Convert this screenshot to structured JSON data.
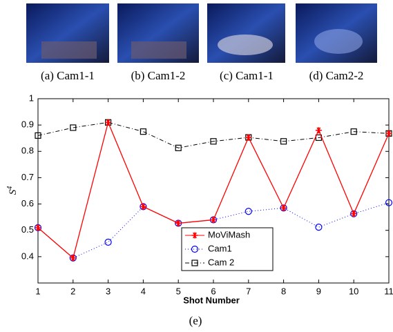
{
  "images": [
    {
      "caption": "(a) Cam1-1"
    },
    {
      "caption": "(b) Cam1-2"
    },
    {
      "caption": "(c) Cam1-1"
    },
    {
      "caption": "(d) Cam2-2"
    }
  ],
  "figure_label": "(e)",
  "chart_data": {
    "type": "line",
    "xlabel": "Shot Number",
    "ylabel": "S",
    "ylabel_superscript": "4",
    "x": [
      1,
      2,
      3,
      4,
      5,
      6,
      7,
      8,
      9,
      10,
      11
    ],
    "xlim": [
      1,
      11
    ],
    "xticks": [
      1,
      2,
      3,
      4,
      5,
      6,
      7,
      8,
      9,
      10,
      11
    ],
    "ylim": [
      0.3,
      1
    ],
    "yticks": [
      0.4,
      0.5,
      0.6,
      0.7,
      0.8,
      0.9,
      1
    ],
    "grid": false,
    "legend": "lower center",
    "series": [
      {
        "name": "MoViMash",
        "color": "#ff0000",
        "marker": "star",
        "linestyle": "solid",
        "values": [
          0.51,
          0.395,
          0.91,
          0.59,
          0.527,
          0.54,
          0.853,
          0.585,
          0.88,
          0.563,
          0.868
        ]
      },
      {
        "name": "Cam1",
        "color": "#0000ff",
        "marker": "circle",
        "linestyle": "dotted",
        "values": [
          0.51,
          0.395,
          0.455,
          0.59,
          0.527,
          0.54,
          0.572,
          0.585,
          0.512,
          0.563,
          0.605
        ]
      },
      {
        "name": "Cam 2",
        "color": "#000000",
        "marker": "square",
        "linestyle": "dashdot",
        "values": [
          0.86,
          0.89,
          0.91,
          0.875,
          0.813,
          0.838,
          0.853,
          0.838,
          0.852,
          0.875,
          0.868
        ]
      }
    ]
  }
}
